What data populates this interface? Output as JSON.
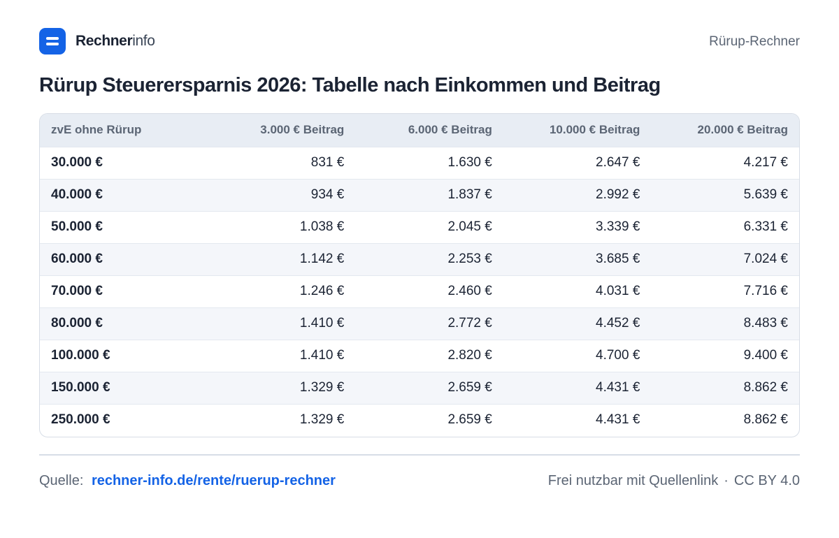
{
  "brand": {
    "name_strong": "Rechner",
    "name_light": "info",
    "logo_icon": "equals-icon",
    "accent_color": "#1463e6"
  },
  "header": {
    "link_label": "Rürup-Rechner"
  },
  "title": "Rürup Steuerersparnis 2026: Tabelle nach Einkommen und Beitrag",
  "table": {
    "headers": [
      "zvE ohne Rürup",
      "3.000 € Beitrag",
      "6.000 € Beitrag",
      "10.000 € Beitrag",
      "20.000 € Beitrag"
    ],
    "rows": [
      [
        "30.000 €",
        "831 €",
        "1.630 €",
        "2.647 €",
        "4.217 €"
      ],
      [
        "40.000 €",
        "934 €",
        "1.837 €",
        "2.992 €",
        "5.639 €"
      ],
      [
        "50.000 €",
        "1.038 €",
        "2.045 €",
        "3.339 €",
        "6.331 €"
      ],
      [
        "60.000 €",
        "1.142 €",
        "2.253 €",
        "3.685 €",
        "7.024 €"
      ],
      [
        "70.000 €",
        "1.246 €",
        "2.460 €",
        "4.031 €",
        "7.716 €"
      ],
      [
        "80.000 €",
        "1.410 €",
        "2.772 €",
        "4.452 €",
        "8.483 €"
      ],
      [
        "100.000 €",
        "1.410 €",
        "2.820 €",
        "4.700 €",
        "9.400 €"
      ],
      [
        "150.000 €",
        "1.329 €",
        "2.659 €",
        "4.431 €",
        "8.862 €"
      ],
      [
        "250.000 €",
        "1.329 €",
        "2.659 €",
        "4.431 €",
        "8.862 €"
      ]
    ]
  },
  "footer": {
    "source_label": "Quelle:",
    "source_link": "rechner-info.de/rente/ruerup-rechner",
    "license_text": "Frei nutzbar mit Quellenlink",
    "separator": "·",
    "license": "CC BY 4.0"
  }
}
